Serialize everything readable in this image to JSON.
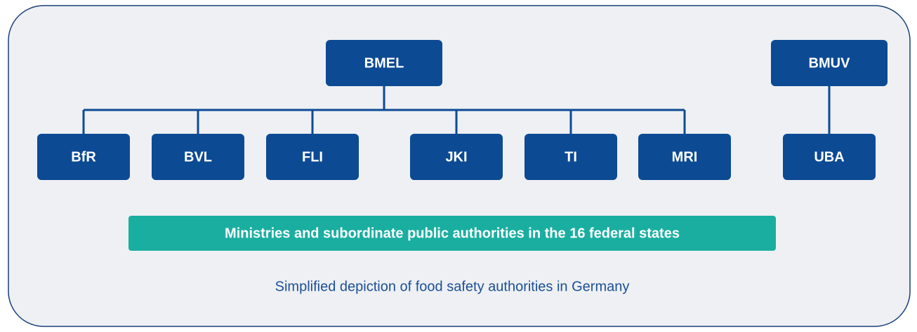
{
  "nodes": [
    {
      "label": "BMEL"
    },
    {
      "label": "BMUV"
    },
    {
      "label": "BfR"
    },
    {
      "label": "BVL"
    },
    {
      "label": "FLI"
    },
    {
      "label": "JKI"
    },
    {
      "label": "TI"
    },
    {
      "label": "MRI"
    },
    {
      "label": "UBA"
    }
  ],
  "banner": "Ministries and subordinate public authorities in the 16 federal states",
  "caption": "Simplified depiction of food safety authorities in Germany"
}
